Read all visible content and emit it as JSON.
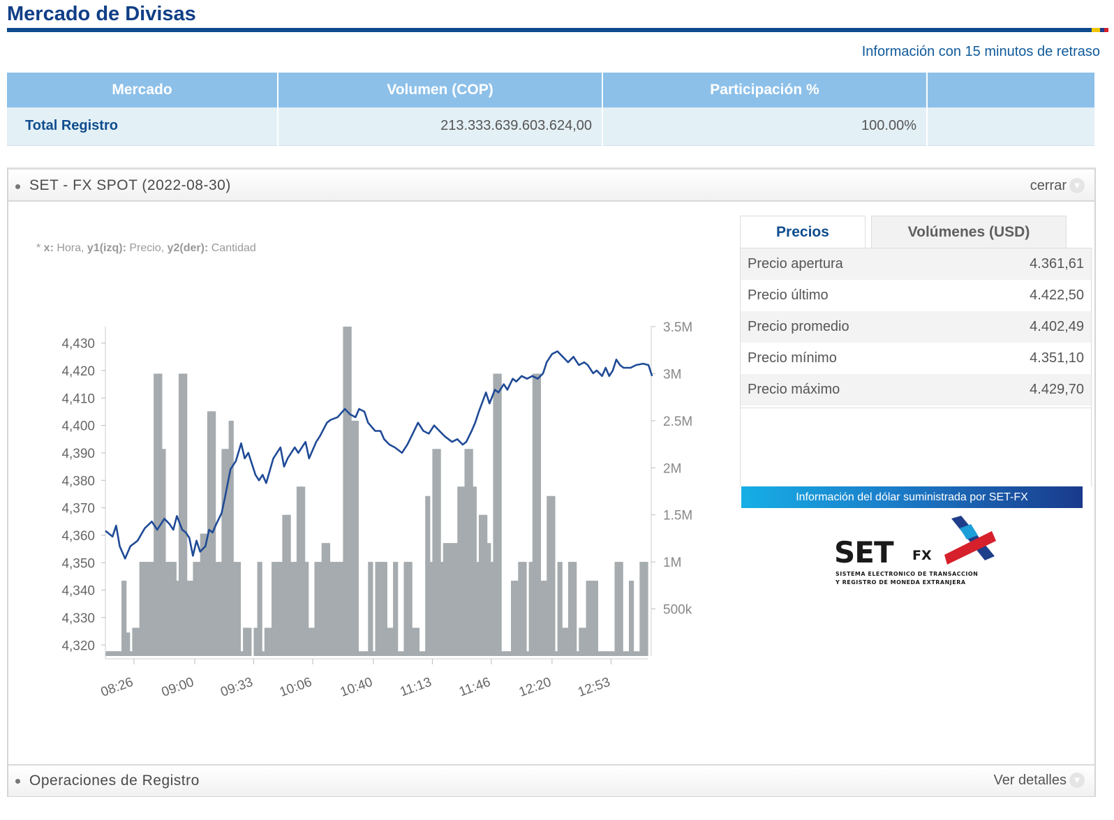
{
  "header": {
    "title": "Mercado de Divisas",
    "delay_note": "Información con 15 minutos de retraso"
  },
  "summary_table": {
    "columns": [
      "Mercado",
      "Volumen (COP)",
      "Participación %",
      ""
    ],
    "rows": [
      {
        "mercado": "Total Registro",
        "volumen": "213.333.639.603.624,00",
        "participacion": "100.00%"
      }
    ]
  },
  "spot_panel": {
    "title": "SET - FX SPOT (2022-08-30)",
    "close_label": "cerrar",
    "chart_note": {
      "prefix": "* ",
      "x_key": "x:",
      "x_val": " Hora, ",
      "y1_key": "y1(izq):",
      "y1_val": " Precio, ",
      "y2_key": "y2(der):",
      "y2_val": " Cantidad"
    },
    "tabs": [
      "Precios",
      "Volúmenes (USD)"
    ],
    "prices": [
      {
        "label": "Precio apertura",
        "value": "4.361,61"
      },
      {
        "label": "Precio último",
        "value": "4.422,50"
      },
      {
        "label": "Precio promedio",
        "value": "4.402,49"
      },
      {
        "label": "Precio mínimo",
        "value": "4.351,10"
      },
      {
        "label": "Precio máximo",
        "value": "4.429,70"
      }
    ],
    "banner": "Información del dólar suministrada por SET-FX",
    "logo": {
      "word": "SET",
      "fx": "FX",
      "sub1": "SISTEMA ELECTRONICO DE TRANSACCION",
      "sub2": "Y REGISTRO DE MONEDA EXTRANJERA"
    }
  },
  "footer_panel": {
    "title": "Operaciones de Registro",
    "action": "Ver detalles"
  },
  "colors": {
    "price_line": "#1f4a96",
    "volume_bar": "#a5abae",
    "header_blue": "#0f3e86",
    "table_head": "#8cc0e9"
  },
  "chart_data": {
    "type": "line+bar",
    "x_ticks": [
      "08:26",
      "09:00",
      "09:33",
      "10:06",
      "10:40",
      "11:13",
      "11:46",
      "12:20",
      "12:53"
    ],
    "x_range_minutes": [
      490,
      792
    ],
    "y1_ticks": [
      "4,320",
      "4,330",
      "4,340",
      "4,350",
      "4,360",
      "4,370",
      "4,380",
      "4,390",
      "4,400",
      "4,410",
      "4,420",
      "4,430"
    ],
    "y1_range": [
      4316,
      4436
    ],
    "y2_ticks": [
      "500k",
      "1M",
      "1.5M",
      "2M",
      "2.5M",
      "3M",
      "3.5M"
    ],
    "y2_range": [
      0,
      3500000
    ],
    "series": [
      {
        "name": "Precio",
        "axis": "y1",
        "points": [
          [
            490,
            4361.6
          ],
          [
            494,
            4359.5
          ],
          [
            496,
            4363.5
          ],
          [
            498,
            4356
          ],
          [
            501,
            4351.5
          ],
          [
            504,
            4356
          ],
          [
            508,
            4358
          ],
          [
            512,
            4362.5
          ],
          [
            516,
            4365
          ],
          [
            519,
            4362
          ],
          [
            523,
            4366
          ],
          [
            526,
            4364
          ],
          [
            528,
            4362
          ],
          [
            530,
            4367
          ],
          [
            533,
            4362
          ],
          [
            535,
            4361
          ],
          [
            537,
            4359
          ],
          [
            539,
            4352.5
          ],
          [
            541,
            4358
          ],
          [
            543,
            4354
          ],
          [
            546,
            4356
          ],
          [
            548,
            4362
          ],
          [
            550,
            4361
          ],
          [
            552,
            4364
          ],
          [
            555,
            4368
          ],
          [
            557,
            4374
          ],
          [
            560,
            4384
          ],
          [
            563,
            4387
          ],
          [
            566,
            4393.5
          ],
          [
            568,
            4388
          ],
          [
            570,
            4390
          ],
          [
            572,
            4386
          ],
          [
            574,
            4382
          ],
          [
            576,
            4380
          ],
          [
            578,
            4382
          ],
          [
            580,
            4379
          ],
          [
            584,
            4388
          ],
          [
            588,
            4392
          ],
          [
            590,
            4385
          ],
          [
            592,
            4388
          ],
          [
            596,
            4392
          ],
          [
            598,
            4390
          ],
          [
            602,
            4394
          ],
          [
            604,
            4388
          ],
          [
            608,
            4394
          ],
          [
            610,
            4396
          ],
          [
            614,
            4401
          ],
          [
            616,
            4402
          ],
          [
            620,
            4403
          ],
          [
            624,
            4406
          ],
          [
            627,
            4404
          ],
          [
            630,
            4403
          ],
          [
            632,
            4406
          ],
          [
            635,
            4405
          ],
          [
            637,
            4401
          ],
          [
            641,
            4398
          ],
          [
            644,
            4398
          ],
          [
            646,
            4395
          ],
          [
            649,
            4393
          ],
          [
            652,
            4392
          ],
          [
            656,
            4390
          ],
          [
            659,
            4393
          ],
          [
            662,
            4397
          ],
          [
            665,
            4401
          ],
          [
            668,
            4398
          ],
          [
            671,
            4397
          ],
          [
            674,
            4400
          ],
          [
            677,
            4398
          ],
          [
            680,
            4396
          ],
          [
            684,
            4394
          ],
          [
            687,
            4395
          ],
          [
            690,
            4393
          ],
          [
            692,
            4394
          ],
          [
            695,
            4398
          ],
          [
            697,
            4401
          ],
          [
            699,
            4405
          ],
          [
            703,
            4412
          ],
          [
            705,
            4408
          ],
          [
            708,
            4413
          ],
          [
            710,
            4412
          ],
          [
            713,
            4415
          ],
          [
            715,
            4413
          ],
          [
            718,
            4417
          ],
          [
            720,
            4416
          ],
          [
            723,
            4418
          ],
          [
            726,
            4417
          ],
          [
            729,
            4418
          ],
          [
            732,
            4417
          ],
          [
            735,
            4419
          ],
          [
            737,
            4423
          ],
          [
            740,
            4426
          ],
          [
            743,
            4427
          ],
          [
            746,
            4425
          ],
          [
            749,
            4423
          ],
          [
            752,
            4425
          ],
          [
            755,
            4422
          ],
          [
            758,
            4423
          ],
          [
            760,
            4422
          ],
          [
            763,
            4419
          ],
          [
            765,
            4420
          ],
          [
            768,
            4418
          ],
          [
            770,
            4421
          ],
          [
            772,
            4418
          ],
          [
            774,
            4420
          ],
          [
            776,
            4424
          ],
          [
            778,
            4422
          ],
          [
            780,
            4421
          ],
          [
            784,
            4421
          ],
          [
            787,
            4422
          ],
          [
            791,
            4422.5
          ],
          [
            794,
            4422
          ],
          [
            796,
            4418
          ]
        ]
      },
      {
        "name": "Cantidad",
        "axis": "y2",
        "bars": [
          [
            490,
            50000
          ],
          [
            491,
            50000
          ],
          [
            492,
            50000
          ],
          [
            493,
            50000
          ],
          [
            494,
            50000
          ],
          [
            495,
            50000
          ],
          [
            496,
            50000
          ],
          [
            497,
            50000
          ],
          [
            499,
            800000
          ],
          [
            501,
            250000
          ],
          [
            503,
            50000
          ],
          [
            505,
            300000
          ],
          [
            507,
            300000
          ],
          [
            509,
            1000000
          ],
          [
            511,
            1000000
          ],
          [
            513,
            1000000
          ],
          [
            515,
            1000000
          ],
          [
            517,
            3000000
          ],
          [
            519,
            3000000
          ],
          [
            521,
            2200000
          ],
          [
            523,
            1000000
          ],
          [
            525,
            1000000
          ],
          [
            527,
            1000000
          ],
          [
            529,
            800000
          ],
          [
            531,
            3000000
          ],
          [
            533,
            3000000
          ],
          [
            535,
            800000
          ],
          [
            537,
            800000
          ],
          [
            539,
            1000000
          ],
          [
            541,
            1000000
          ],
          [
            543,
            1300000
          ],
          [
            545,
            1300000
          ],
          [
            547,
            2600000
          ],
          [
            549,
            2600000
          ],
          [
            551,
            1000000
          ],
          [
            553,
            1000000
          ],
          [
            555,
            2200000
          ],
          [
            557,
            2200000
          ],
          [
            559,
            2500000
          ],
          [
            561,
            1000000
          ],
          [
            563,
            1000000
          ],
          [
            565,
            50000
          ],
          [
            567,
            300000
          ],
          [
            569,
            300000
          ],
          [
            573,
            300000
          ],
          [
            575,
            1000000
          ],
          [
            577,
            50000
          ],
          [
            579,
            300000
          ],
          [
            581,
            300000
          ],
          [
            583,
            1000000
          ],
          [
            585,
            1000000
          ],
          [
            587,
            1000000
          ],
          [
            589,
            1500000
          ],
          [
            591,
            1500000
          ],
          [
            593,
            1000000
          ],
          [
            595,
            1000000
          ],
          [
            597,
            1800000
          ],
          [
            599,
            1800000
          ],
          [
            601,
            1000000
          ],
          [
            603,
            300000
          ],
          [
            605,
            300000
          ],
          [
            607,
            1000000
          ],
          [
            609,
            1000000
          ],
          [
            611,
            1200000
          ],
          [
            613,
            1200000
          ],
          [
            615,
            1000000
          ],
          [
            617,
            1000000
          ],
          [
            619,
            1000000
          ],
          [
            621,
            1000000
          ],
          [
            623,
            3500000
          ],
          [
            625,
            3500000
          ],
          [
            627,
            2500000
          ],
          [
            629,
            2500000
          ],
          [
            631,
            50000
          ],
          [
            633,
            50000
          ],
          [
            635,
            50000
          ],
          [
            637,
            1000000
          ],
          [
            639,
            50000
          ],
          [
            641,
            1000000
          ],
          [
            643,
            1000000
          ],
          [
            645,
            1000000
          ],
          [
            647,
            300000
          ],
          [
            649,
            300000
          ],
          [
            651,
            1000000
          ],
          [
            653,
            50000
          ],
          [
            655,
            50000
          ],
          [
            657,
            1000000
          ],
          [
            659,
            1000000
          ],
          [
            661,
            300000
          ],
          [
            663,
            300000
          ],
          [
            665,
            50000
          ],
          [
            667,
            50000
          ],
          [
            669,
            1700000
          ],
          [
            671,
            1000000
          ],
          [
            673,
            2200000
          ],
          [
            675,
            2200000
          ],
          [
            677,
            1000000
          ],
          [
            679,
            1200000
          ],
          [
            681,
            1200000
          ],
          [
            683,
            1200000
          ],
          [
            685,
            1200000
          ],
          [
            687,
            1800000
          ],
          [
            689,
            1800000
          ],
          [
            691,
            2200000
          ],
          [
            693,
            2200000
          ],
          [
            695,
            1800000
          ],
          [
            697,
            1000000
          ],
          [
            699,
            1500000
          ],
          [
            701,
            1500000
          ],
          [
            703,
            1200000
          ],
          [
            705,
            1000000
          ],
          [
            707,
            3000000
          ],
          [
            709,
            3000000
          ],
          [
            711,
            50000
          ],
          [
            713,
            50000
          ],
          [
            715,
            50000
          ],
          [
            717,
            800000
          ],
          [
            719,
            800000
          ],
          [
            721,
            1000000
          ],
          [
            723,
            1000000
          ],
          [
            725,
            50000
          ],
          [
            727,
            1000000
          ],
          [
            729,
            3000000
          ],
          [
            731,
            3000000
          ],
          [
            733,
            800000
          ],
          [
            735,
            800000
          ],
          [
            737,
            1700000
          ],
          [
            739,
            1700000
          ],
          [
            741,
            50000
          ],
          [
            743,
            1000000
          ],
          [
            745,
            300000
          ],
          [
            747,
            300000
          ],
          [
            749,
            1000000
          ],
          [
            751,
            1000000
          ],
          [
            753,
            50000
          ],
          [
            755,
            300000
          ],
          [
            757,
            300000
          ],
          [
            759,
            800000
          ],
          [
            761,
            800000
          ],
          [
            763,
            800000
          ],
          [
            765,
            50000
          ],
          [
            767,
            50000
          ],
          [
            769,
            50000
          ],
          [
            771,
            50000
          ],
          [
            773,
            50000
          ],
          [
            775,
            1000000
          ],
          [
            777,
            1000000
          ],
          [
            779,
            50000
          ],
          [
            781,
            50000
          ],
          [
            783,
            800000
          ],
          [
            785,
            50000
          ],
          [
            787,
            50000
          ],
          [
            789,
            1000000
          ],
          [
            791,
            1000000
          ]
        ]
      }
    ]
  }
}
